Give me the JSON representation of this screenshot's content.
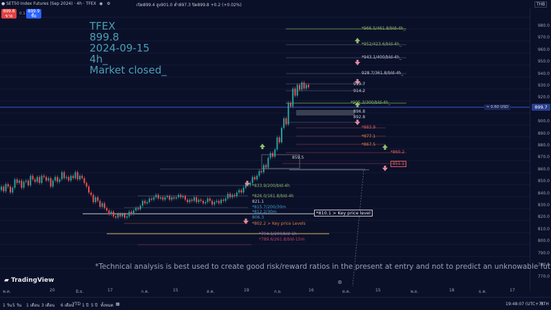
{
  "header": {
    "symbol_title": "SET50 Index Futures (Sep 2024) · 4h · TFEX",
    "ohlc": "เปิด899.4  สูง901.0  ต่ำ897.3  ปิด899.8  +0.2 (+0.02%)",
    "sell_price": "899.8",
    "sell_label": "ขาย",
    "spread": "0.1",
    "buy_price": "899.9",
    "buy_label": "ซื้อ",
    "currency": "THB"
  },
  "overlay": {
    "line1": "TFEX",
    "line2": "899.8",
    "line3": "2024-09-15",
    "line4": "4h_",
    "line5": "Market closed_"
  },
  "levels_right": [
    {
      "text": "*966.5/461.8/bld-4h_",
      "color": "#8fbf6a"
    },
    {
      "text": "*952/423.6/bld-4h_",
      "color": "#8fbf6a"
    },
    {
      "text": "*943.1/400/bld-4h_",
      "color": "#c9cbd4"
    },
    {
      "text": "928.7/361.8/bld-4h_",
      "color": "#c9cbd4"
    },
    {
      "text": "919.7",
      "color": "#c9cbd4"
    },
    {
      "text": "914.2",
      "color": "#c9cbd4"
    },
    {
      "text": "*905.3/300/bld-4h_",
      "color": "#8fbf6a"
    },
    {
      "text": "896.8",
      "color": "#c9cbd4"
    },
    {
      "text": "892.8",
      "color": "#c9cbd4"
    },
    {
      "text": "*883.9",
      "color": "#e06060"
    },
    {
      "text": "*877.1",
      "color": "#e08040"
    },
    {
      "text": "*867.5",
      "color": "#e08040"
    },
    {
      "text": "*860.2",
      "color": "#e06060"
    },
    {
      "text": "851.1",
      "color": "#e06060"
    }
  ],
  "levels_mid": [
    {
      "text": "859.5",
      "color": "#c9cbd4"
    },
    {
      "text": "*833.9/200/bld-4h",
      "color": "#8fbf6a"
    },
    {
      "text": "*826.0/161.8/bld-4h",
      "color": "#8fbf6a"
    },
    {
      "text": "821.1",
      "color": "#c9cbd4"
    },
    {
      "text": "*815.7/200/30m",
      "color": "#3aa0d0"
    },
    {
      "text": "*812.2/30m",
      "color": "#3aa0d0"
    },
    {
      "text": "806.3",
      "color": "#3aa0d0"
    },
    {
      "text": "*802.2 > Key price Levels",
      "color": "#e08040"
    },
    {
      "text": "*794.1/200/bld-1h",
      "color": "#8a6ab0"
    },
    {
      "text": "*789.6/261.8/bld-15m",
      "color": "#c04060"
    }
  ],
  "key_box": "*810.1 > Key price level",
  "usd_badge": "≈ 0.60 USD",
  "current_price": "899.7",
  "price_ticks": [
    "980.0",
    "970.0",
    "960.0",
    "950.0",
    "940.0",
    "930.0",
    "920.0",
    "910.0",
    "900.0",
    "890.0",
    "880.0",
    "870.0",
    "860.0",
    "850.0",
    "840.0",
    "830.0",
    "820.0",
    "810.0",
    "800.0",
    "790.0",
    "780.0",
    "770.0"
  ],
  "date_ticks": [
    "พ.ค.",
    "20",
    "มิ.ย.",
    "17",
    "ก.ค.",
    "15",
    "ส.ค.",
    "19",
    "ก.ย.",
    "16",
    "ต.ค.",
    "15",
    "พ.ย.",
    "18",
    "ธ.ค.",
    "17"
  ],
  "disclaimer": "*Technical analysis is best used to create good risk/reward ratios in the present at entry and not to predict an unknowable future.",
  "brand": "TradingView",
  "bottom": {
    "ranges": [
      "1 วัน",
      "5 วัน",
      "1 เดือน",
      "3 เดือน",
      "6 เดือน",
      "YTD",
      "1 ปี",
      "5 ปี",
      "ทั้งหมด"
    ],
    "time": "19:48:07 (UTC+7)",
    "session": "RTH"
  },
  "colors": {
    "up": "#26a69a",
    "down": "#ef5350",
    "bg": "#0b1029",
    "overlay": "#4aa0b5"
  }
}
